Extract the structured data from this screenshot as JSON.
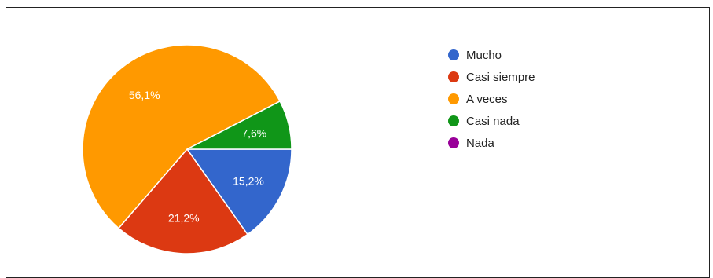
{
  "chart_data": {
    "type": "pie",
    "title": "",
    "categories": [
      "Mucho",
      "Casi siempre",
      "A veces",
      "Casi nada",
      "Nada"
    ],
    "values": [
      15.2,
      21.2,
      56.1,
      7.6,
      0
    ],
    "labels": [
      "15,2%",
      "21,2%",
      "56,1%",
      "7,6%",
      ""
    ],
    "colors": [
      "#3366cc",
      "#dc3912",
      "#ff9900",
      "#109618",
      "#990099"
    ],
    "start_angle_deg": 90,
    "direction": "clockwise",
    "legend_position": "right"
  }
}
